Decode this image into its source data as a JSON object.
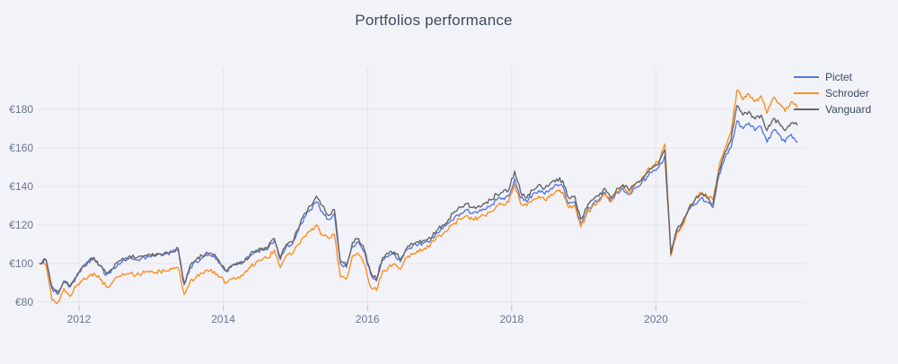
{
  "page": {
    "title": "Portfolios performance"
  },
  "theme": {
    "background": "#f2f3f8",
    "grid_color": "#e2e4ed",
    "tick_mark_color": "#b9becb",
    "axis_label_color": "#6a7590",
    "title_color": "#3d4a63",
    "legend_text_color": "#3d4a63"
  },
  "chart_data": {
    "type": "line",
    "title": "Portfolios performance",
    "currency_prefix": "€",
    "x_interval": "monthly",
    "x_start_month": "2011-06",
    "x_end_month": "2021-12",
    "x_axis": {
      "tick_labels": [
        "2012",
        "2014",
        "2016",
        "2018",
        "2020"
      ],
      "tick_values": [
        2012,
        2014,
        2016,
        2018,
        2020
      ],
      "range": [
        2011.4,
        2022.07
      ]
    },
    "y_axis": {
      "tick_labels": [
        "€80",
        "€100",
        "€120",
        "€140",
        "€160",
        "€180"
      ],
      "tick_values": [
        80,
        100,
        120,
        140,
        160,
        180
      ],
      "range": [
        74,
        197
      ]
    },
    "grid": true,
    "legend": {
      "position": "top-right",
      "entries": [
        "Pictet",
        "Schroder",
        "Vanguard"
      ]
    },
    "series": [
      {
        "name": "Pictet",
        "color": "#5878dd",
        "values": [
          100,
          102,
          87,
          84,
          91,
          88,
          93,
          98,
          101,
          103,
          99,
          94,
          97,
          100,
          102,
          103,
          102,
          103,
          104,
          104,
          105,
          105,
          106,
          107,
          89,
          98,
          101,
          103,
          105,
          104,
          100,
          96,
          99,
          100,
          101,
          104,
          106,
          107,
          108,
          112,
          102,
          109,
          110,
          117,
          124,
          128,
          132,
          127,
          123,
          126,
          100,
          98,
          109,
          111,
          106,
          95,
          91,
          102,
          104,
          105,
          101,
          107,
          109,
          110,
          111,
          112,
          116,
          118,
          121,
          124,
          126,
          128,
          126,
          127,
          128,
          130,
          133,
          134,
          135,
          144,
          134,
          132,
          136,
          138,
          136,
          139,
          141,
          140,
          131,
          132,
          121,
          127,
          131,
          133,
          137,
          132,
          137,
          139,
          136,
          139,
          141,
          145,
          148,
          150,
          156,
          105,
          117,
          121,
          128,
          131,
          134,
          132,
          129,
          146,
          155,
          160,
          174,
          170,
          173,
          169,
          171,
          163,
          169,
          167,
          163,
          167,
          163
        ]
      },
      {
        "name": "Schroder",
        "color": "#fd8f20",
        "values": [
          100,
          99,
          81,
          80,
          87,
          83,
          88,
          91,
          93,
          95,
          92,
          88,
          90,
          93,
          94,
          95,
          94,
          95,
          96,
          95,
          96,
          96,
          97,
          98,
          84,
          91,
          93,
          95,
          96,
          96,
          93,
          90,
          92,
          93,
          95,
          98,
          101,
          102,
          103,
          107,
          98,
          104,
          105,
          110,
          114,
          117,
          120,
          115,
          113,
          115,
          93,
          92,
          104,
          105,
          100,
          88,
          86,
          96,
          98,
          100,
          97,
          103,
          105,
          106,
          108,
          110,
          114,
          115,
          118,
          121,
          123,
          125,
          123,
          124,
          125,
          127,
          130,
          131,
          132,
          141,
          131,
          130,
          133,
          135,
          133,
          136,
          138,
          137,
          129,
          130,
          119,
          126,
          130,
          132,
          136,
          132,
          137,
          140,
          137,
          141,
          143,
          148,
          151,
          153,
          162,
          104,
          116,
          120,
          129,
          133,
          137,
          135,
          133,
          150,
          160,
          168,
          190,
          185,
          188,
          184,
          187,
          178,
          186,
          183,
          179,
          184,
          181
        ]
      },
      {
        "name": "Vanguard",
        "color": "#666666",
        "values": [
          100,
          102,
          88,
          85,
          91,
          88,
          93,
          98,
          101,
          103,
          99,
          95,
          97,
          101,
          102,
          104,
          103,
          104,
          105,
          104,
          105,
          106,
          106,
          108,
          90,
          99,
          102,
          104,
          105,
          105,
          100,
          96,
          99,
          100,
          101,
          105,
          107,
          108,
          109,
          113,
          103,
          110,
          111,
          118,
          126,
          130,
          135,
          130,
          125,
          128,
          101,
          99,
          111,
          113,
          107,
          96,
          92,
          103,
          105,
          106,
          102,
          108,
          110,
          111,
          112,
          113,
          117,
          120,
          123,
          127,
          129,
          131,
          129,
          130,
          131,
          133,
          136,
          137,
          138,
          148,
          137,
          134,
          138,
          141,
          139,
          142,
          144,
          143,
          134,
          135,
          123,
          129,
          133,
          135,
          139,
          134,
          139,
          141,
          138,
          141,
          143,
          147,
          150,
          152,
          159,
          105,
          118,
          122,
          129,
          133,
          136,
          134,
          131,
          148,
          158,
          164,
          182,
          177,
          179,
          175,
          177,
          169,
          175,
          173,
          169,
          173,
          172
        ]
      }
    ]
  }
}
